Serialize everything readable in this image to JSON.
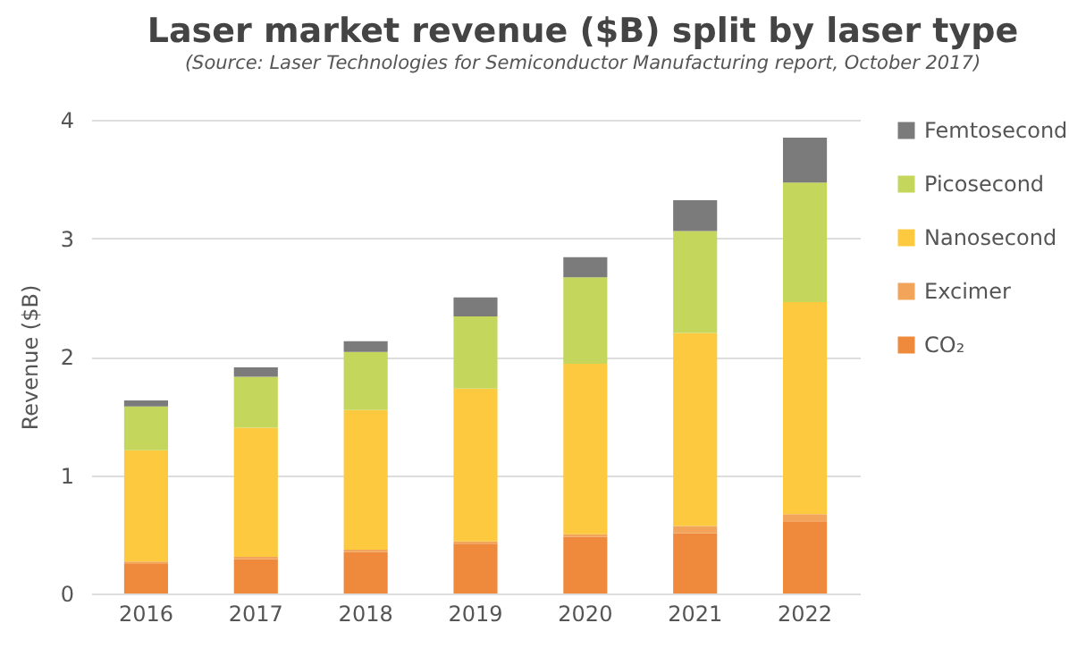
{
  "chart_data": {
    "type": "bar",
    "title": "Laser market revenue ($B) split by laser type",
    "subtitle": "(Source: Laser Technologies for Semiconductor Manufacturing report, October 2017)",
    "ylabel": "Revenue ($B)",
    "categories": [
      "2016",
      "2017",
      "2018",
      "2019",
      "2020",
      "2021",
      "2022"
    ],
    "stacked": true,
    "series": [
      {
        "name": "CO₂",
        "color": "#ef8a3c",
        "values": [
          0.25,
          0.29,
          0.35,
          0.42,
          0.48,
          0.51,
          0.61
        ]
      },
      {
        "name": "Excimer",
        "color": "#f2a45a",
        "values": [
          0.02,
          0.02,
          0.02,
          0.02,
          0.02,
          0.06,
          0.06
        ]
      },
      {
        "name": "Nanosecond",
        "color": "#fdc93e",
        "values": [
          0.94,
          1.09,
          1.18,
          1.29,
          1.44,
          1.63,
          1.79
        ]
      },
      {
        "name": "Picosecond",
        "color": "#c5d65c",
        "values": [
          0.37,
          0.43,
          0.49,
          0.61,
          0.73,
          0.86,
          1.01
        ]
      },
      {
        "name": "Femtosecond",
        "color": "#7b7b7b",
        "values": [
          0.05,
          0.08,
          0.09,
          0.16,
          0.17,
          0.26,
          0.38
        ]
      }
    ],
    "ylim": [
      0,
      4
    ],
    "yticks": [
      0,
      1,
      2,
      3,
      4
    ],
    "grid": "y",
    "legend": "right"
  }
}
